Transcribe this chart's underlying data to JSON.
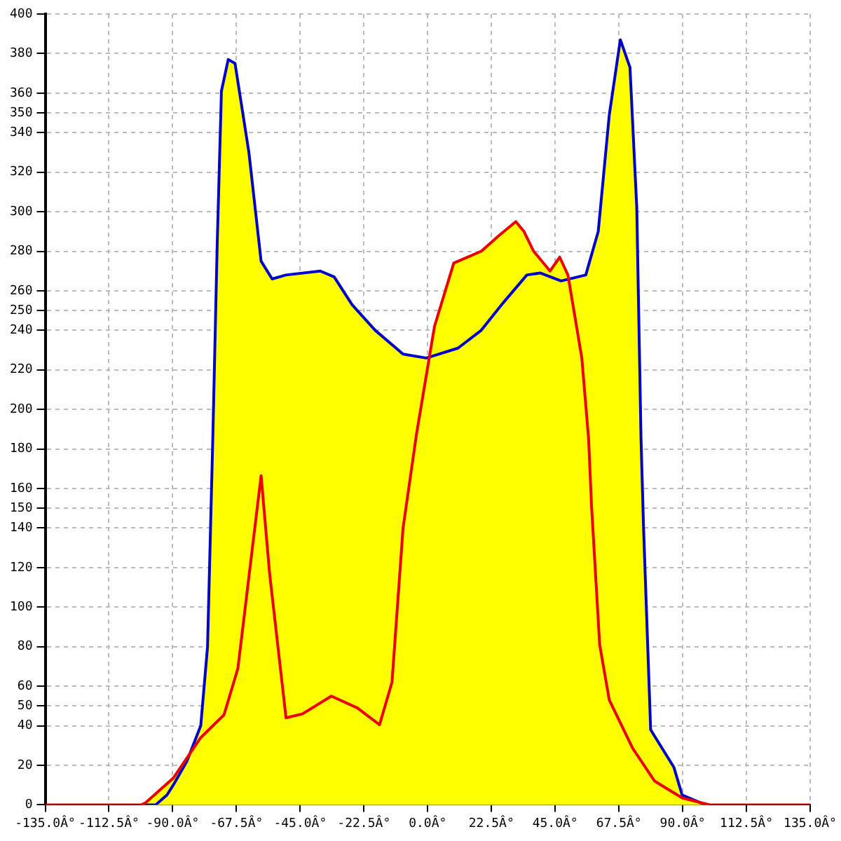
{
  "chart_data": {
    "type": "area",
    "xlim": [
      -135,
      135
    ],
    "xticks": [
      {
        "value": -135,
        "label": "-135.0Â°"
      },
      {
        "value": -112.5,
        "label": "-112.5Â°"
      },
      {
        "value": -90,
        "label": "-90.0Â°"
      },
      {
        "value": -67.5,
        "label": "-67.5Â°"
      },
      {
        "value": -45,
        "label": "-45.0Â°"
      },
      {
        "value": -22.5,
        "label": "-22.5Â°"
      },
      {
        "value": 0,
        "label": "0.0Â°"
      },
      {
        "value": 22.5,
        "label": "22.5Â°"
      },
      {
        "value": 45,
        "label": "45.0Â°"
      },
      {
        "value": 67.5,
        "label": "67.5Â°"
      },
      {
        "value": 90,
        "label": "90.0Â°"
      },
      {
        "value": 112.5,
        "label": "112.5Â°"
      },
      {
        "value": 135,
        "label": "135.0Â°"
      }
    ],
    "ylim": [
      0,
      400
    ],
    "yticks": [
      0,
      20,
      40,
      50,
      60,
      80,
      100,
      120,
      140,
      150,
      160,
      180,
      200,
      220,
      240,
      250,
      260,
      280,
      300,
      320,
      340,
      350,
      360,
      380,
      400
    ],
    "grid": true,
    "marker": "none",
    "series": [
      {
        "type": "area",
        "color": "#ffff00",
        "x": [
          -100,
          -96,
          -92,
          -89.8,
          -85,
          -80.1,
          -77.7,
          -75.8,
          -74.3,
          -72.8,
          -70.4,
          -68,
          -63.1,
          -58.8,
          -54.9,
          -50,
          -37.9,
          -33,
          -26.7,
          -18.5,
          -8.7,
          -0.5,
          10.7,
          18.9,
          26.7,
          35,
          39.8,
          47.1,
          55.8,
          60.2,
          64.1,
          68,
          71.4,
          73.8,
          75.3,
          76.2,
          78.7,
          86.9,
          89.8,
          98
        ],
        "values": [
          0,
          0,
          5,
          10,
          22,
          40,
          80,
          188,
          283,
          361,
          377,
          375,
          330,
          275,
          266,
          268,
          270,
          267,
          253,
          240,
          228,
          226,
          231,
          240,
          254,
          268,
          269,
          265,
          268,
          290,
          349,
          387,
          373,
          302,
          185,
          140,
          38,
          19,
          5,
          0
        ]
      },
      {
        "type": "line",
        "color": "#ee0000",
        "x": [
          -135,
          -101,
          -99.6,
          -89.8,
          -80.1,
          -71.9,
          -67,
          -58.8,
          -55.8,
          -50,
          -44.2,
          -34,
          -24.8,
          -17,
          -12.6,
          -8.7,
          -3.9,
          2.4,
          9.2,
          18.9,
          25.2,
          31.1,
          34,
          37.4,
          43.2,
          46.6,
          49.5,
          54.4,
          56.8,
          57.8,
          60.7,
          64.1,
          72.4,
          80.1,
          89.8,
          99.5,
          135
        ],
        "values": [
          0,
          0,
          1,
          13.5,
          34,
          45.5,
          69,
          166.5,
          117,
          44,
          46,
          55,
          49,
          40.5,
          62,
          140,
          188,
          242,
          274,
          280,
          288,
          295,
          290,
          280,
          270,
          277,
          268,
          226,
          185,
          152,
          81,
          53,
          28.5,
          12,
          3.5,
          0,
          0
        ]
      }
    ]
  }
}
